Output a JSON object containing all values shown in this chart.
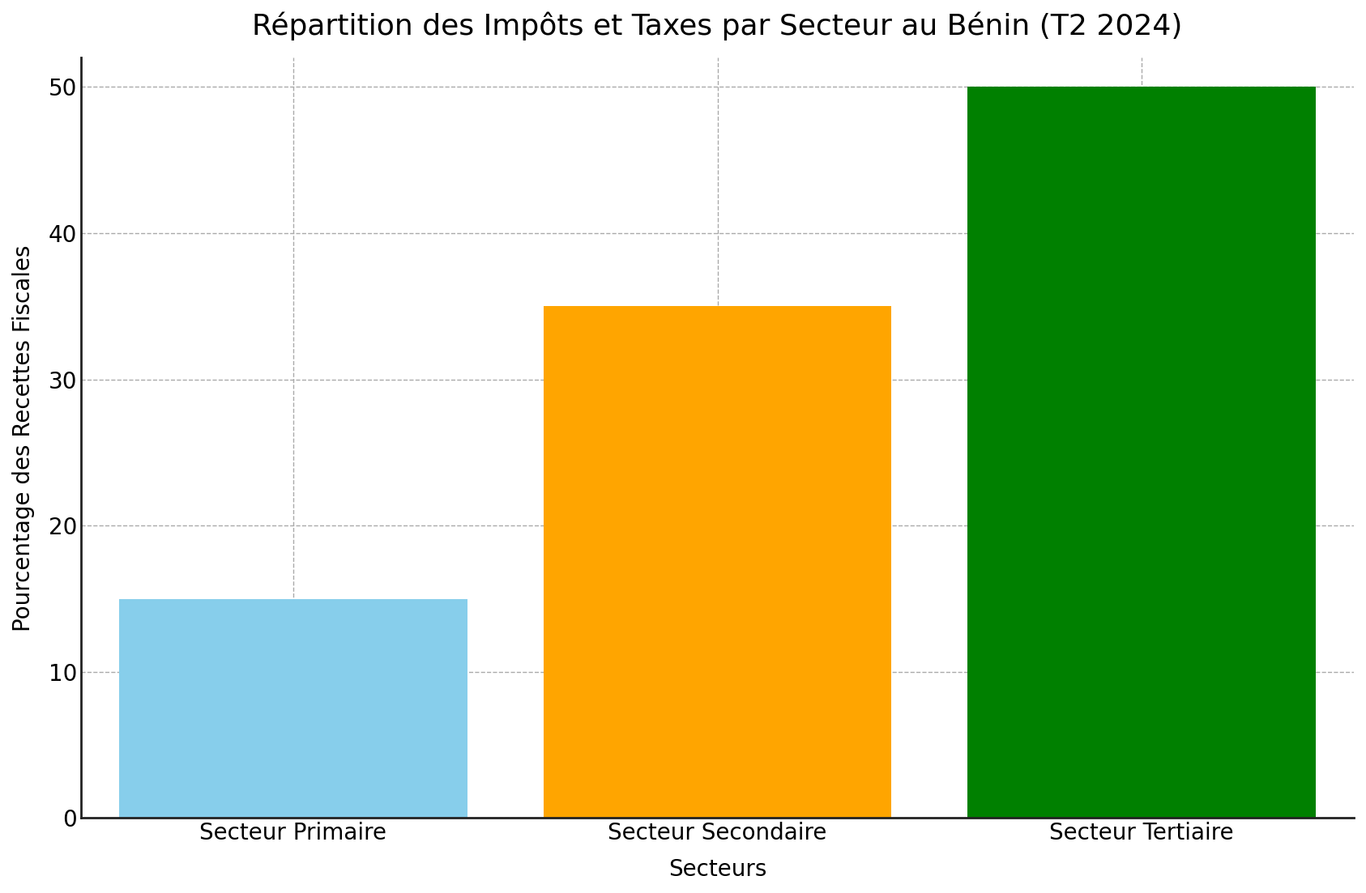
{
  "title": "Répartition des Impôts et Taxes par Secteur au Bénin (T2 2024)",
  "categories": [
    "Secteur Primaire",
    "Secteur Secondaire",
    "Secteur Tertiaire"
  ],
  "values": [
    15,
    35,
    50
  ],
  "bar_colors": [
    "#87CEEB",
    "#FFA500",
    "#008000"
  ],
  "xlabel": "Secteurs",
  "ylabel": "Pourcentage des Recettes Fiscales",
  "ylim": [
    0,
    52
  ],
  "yticks": [
    0,
    10,
    20,
    30,
    40,
    50
  ],
  "title_fontsize": 26,
  "label_fontsize": 20,
  "tick_fontsize": 20,
  "background_color": "#ffffff",
  "grid_color": "#aaaaaa",
  "bar_width": 0.82,
  "spine_color": "#222222"
}
